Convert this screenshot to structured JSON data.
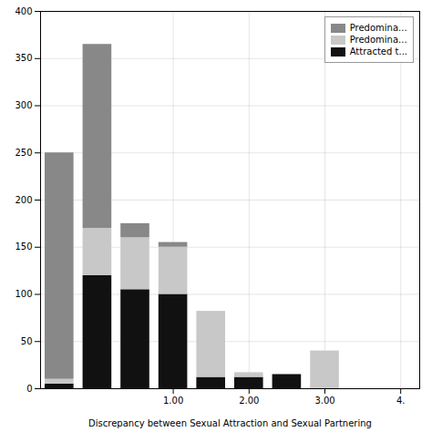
{
  "chart_data": {
    "type": "bar",
    "stacked": true,
    "xlabel": "Discrepancy between Sexual Attraction and Sexual Partnering",
    "x": [
      -0.5,
      0.0,
      0.5,
      1.0,
      1.5,
      2.0,
      2.5,
      3.0,
      3.5
    ],
    "series": [
      {
        "name": "Attracted t...",
        "color": "#111111",
        "values": [
          5,
          120,
          105,
          100,
          12,
          12,
          15,
          0,
          0
        ]
      },
      {
        "name": "Predomina...",
        "color": "#c8c8c8",
        "values": [
          5,
          50,
          55,
          50,
          70,
          5,
          0,
          40,
          0
        ]
      },
      {
        "name": "Predomina...",
        "color": "#888888",
        "values": [
          240,
          195,
          15,
          5,
          0,
          0,
          0,
          0,
          0
        ]
      }
    ],
    "xlim": [
      -0.75,
      4.25
    ],
    "xticks": [
      {
        "value": 1.0,
        "label": "1.00"
      },
      {
        "value": 2.0,
        "label": "2.00"
      },
      {
        "value": 3.0,
        "label": "3.00"
      },
      {
        "value": 4.0,
        "label": "4."
      }
    ],
    "ylim": [
      0,
      400
    ],
    "yticks": [
      0,
      50,
      100,
      150,
      200,
      250,
      300,
      350,
      400
    ],
    "grid": true,
    "legend": "upper right"
  }
}
